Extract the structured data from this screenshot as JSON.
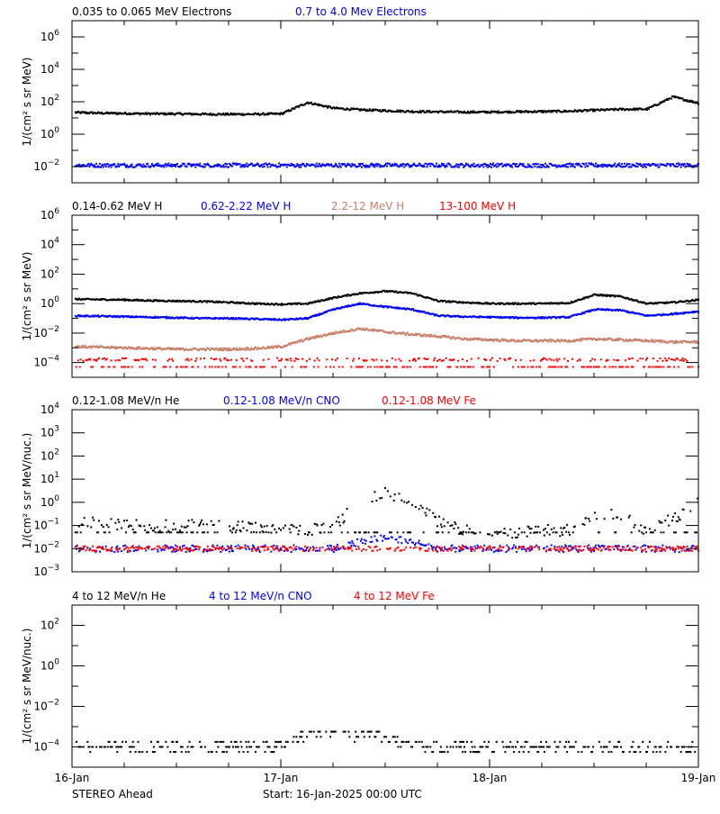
{
  "footer": {
    "spacecraft": "STEREO Ahead",
    "start": "Start: 16-Jan-2025 00:00 UTC"
  },
  "x_axis": {
    "type": "time",
    "range_hours_from_start": [
      0,
      72
    ],
    "tick_labels": [
      "16-Jan",
      "17-Jan",
      "18-Jan",
      "19-Jan"
    ]
  },
  "chart_data": [
    {
      "type": "scatter",
      "ylabel": "1/(cm² s sr MeV)",
      "yscale": "log",
      "ylim": [
        0.001,
        10000000
      ],
      "ytick_exponents": [
        6,
        4,
        2,
        0,
        -2
      ],
      "x_hours": [
        0,
        3,
        6,
        9,
        12,
        15,
        18,
        21,
        24,
        27,
        30,
        33,
        36,
        39,
        42,
        45,
        48,
        51,
        54,
        57,
        60,
        63,
        66,
        69,
        72
      ],
      "series": [
        {
          "name": "0.035 to 0.065 MeV Electrons",
          "color": "#000000",
          "values": [
            22,
            20,
            19,
            18,
            18,
            17,
            17,
            17,
            18,
            90,
            40,
            32,
            28,
            25,
            24,
            23,
            23,
            24,
            25,
            26,
            30,
            34,
            35,
            200,
            80
          ]
        },
        {
          "name": "0.7 to 4.0 Mev Electrons",
          "color": "#0000ff",
          "values": [
            0.012,
            0.012,
            0.012,
            0.012,
            0.012,
            0.012,
            0.012,
            0.012,
            0.012,
            0.012,
            0.012,
            0.012,
            0.012,
            0.012,
            0.012,
            0.012,
            0.012,
            0.012,
            0.012,
            0.012,
            0.012,
            0.012,
            0.012,
            0.012,
            0.012
          ]
        }
      ]
    },
    {
      "type": "scatter",
      "ylabel": "1/(cm² s sr MeV)",
      "yscale": "log",
      "ylim": [
        1e-05,
        1000000
      ],
      "ytick_exponents": [
        6,
        4,
        2,
        0,
        -2,
        -4
      ],
      "x_hours": [
        0,
        3,
        6,
        9,
        12,
        15,
        18,
        21,
        24,
        27,
        30,
        33,
        36,
        39,
        42,
        45,
        48,
        51,
        54,
        57,
        60,
        63,
        66,
        69,
        72
      ],
      "series": [
        {
          "name": "0.14-0.62 MeV H",
          "color": "#000000",
          "values": [
            2,
            1.9,
            1.8,
            1.6,
            1.5,
            1.4,
            1.2,
            1.0,
            0.9,
            1.0,
            2.5,
            5,
            7,
            5,
            1.5,
            1.2,
            1.0,
            1.0,
            1.0,
            1.1,
            4,
            3,
            1.0,
            1.2,
            1.8
          ]
        },
        {
          "name": "0.62-2.22 MeV H",
          "color": "#0000ff",
          "values": [
            0.15,
            0.14,
            0.13,
            0.12,
            0.11,
            0.1,
            0.1,
            0.09,
            0.08,
            0.1,
            0.4,
            1.0,
            0.6,
            0.4,
            0.15,
            0.13,
            0.12,
            0.11,
            0.11,
            0.12,
            0.4,
            0.35,
            0.15,
            0.2,
            0.3
          ]
        },
        {
          "name": "2.2-12 MeV H",
          "color": "#c8806a",
          "values": [
            0.0012,
            0.0011,
            0.001,
            0.0009,
            0.0008,
            0.0008,
            0.0008,
            0.0009,
            0.0012,
            0.004,
            0.01,
            0.02,
            0.012,
            0.008,
            0.006,
            0.004,
            0.0035,
            0.003,
            0.003,
            0.003,
            0.004,
            0.0035,
            0.003,
            0.0025,
            0.0025
          ]
        },
        {
          "name": "13-100 MeV H",
          "color": "#ff0000",
          "values": [
            7e-05,
            7e-05,
            7e-05,
            7e-05,
            7e-05,
            7e-05,
            7e-05,
            7e-05,
            7e-05,
            7e-05,
            7e-05,
            7e-05,
            7e-05,
            7e-05,
            7e-05,
            7e-05,
            7e-05,
            7e-05,
            7e-05,
            7e-05,
            7e-05,
            7e-05,
            7e-05,
            7e-05,
            7e-05
          ]
        }
      ]
    },
    {
      "type": "scatter",
      "ylabel": "1/(cm² s sr MeV/nuc.)",
      "yscale": "log",
      "ylim": [
        0.001,
        10000
      ],
      "ytick_exponents": [
        4,
        3,
        2,
        1,
        0,
        -1,
        -2,
        -3
      ],
      "x_hours": [
        0,
        3,
        6,
        9,
        12,
        15,
        18,
        21,
        24,
        27,
        30,
        33,
        36,
        39,
        42,
        45,
        48,
        51,
        54,
        57,
        60,
        63,
        66,
        69,
        72
      ],
      "series": [
        {
          "name": "0.12-1.08 MeV/n He",
          "color": "#000000",
          "values": [
            0.15,
            0.12,
            0.1,
            0.1,
            0.1,
            0.1,
            0.1,
            0.08,
            0.06,
            0.06,
            0.1,
            1.0,
            2.5,
            1.2,
            0.15,
            0.06,
            0.05,
            0.05,
            0.06,
            0.06,
            0.3,
            0.3,
            0.06,
            0.2,
            1.0
          ]
        },
        {
          "name": "0.12-1.08 MeV/n CNO",
          "color": "#0000ff",
          "values": [
            0.01,
            0.01,
            0.01,
            0.01,
            0.01,
            0.01,
            0.01,
            0.01,
            0.01,
            0.01,
            0.01,
            0.02,
            0.03,
            0.02,
            0.01,
            0.01,
            0.01,
            0.01,
            0.01,
            0.01,
            0.01,
            0.01,
            0.01,
            0.01,
            0.01
          ]
        },
        {
          "name": "0.12-1.08 MeV Fe",
          "color": "#ff0000",
          "values": [
            0.01,
            0.01,
            0.01,
            0.01,
            0.01,
            0.01,
            0.01,
            0.01,
            0.01,
            0.01,
            0.01,
            0.01,
            0.01,
            0.01,
            0.01,
            0.01,
            0.01,
            0.01,
            0.01,
            0.01,
            0.01,
            0.01,
            0.01,
            0.01,
            0.01
          ]
        }
      ]
    },
    {
      "type": "scatter",
      "ylabel": "1/(cm² s sr MeV/nuc.)",
      "yscale": "log",
      "ylim": [
        1e-05,
        1000
      ],
      "ytick_exponents": [
        2,
        0,
        -2,
        -4
      ],
      "x_hours": [
        0,
        3,
        6,
        9,
        12,
        15,
        18,
        21,
        24,
        27,
        30,
        33,
        36,
        39,
        42,
        45,
        48,
        51,
        54,
        57,
        60,
        63,
        66,
        69,
        72
      ],
      "series": [
        {
          "name": "4 to 12 MeV/n He",
          "color": "#000000",
          "values": [
            0.0001,
            0.0001,
            0.0001,
            0.0001,
            0.0001,
            0.0001,
            0.0001,
            0.0001,
            0.00012,
            0.0004,
            0.0005,
            0.0004,
            0.00025,
            0.00015,
            0.0001,
            0.0001,
            0.0001,
            0.0001,
            0.0001,
            0.0001,
            0.0001,
            0.0001,
            0.0001,
            0.0001,
            0.0001
          ]
        },
        {
          "name": "4 to 12 MeV/n CNO",
          "color": "#0000ff",
          "values": []
        },
        {
          "name": "4 to 12 MeV Fe",
          "color": "#ff0000",
          "values": []
        }
      ]
    }
  ]
}
